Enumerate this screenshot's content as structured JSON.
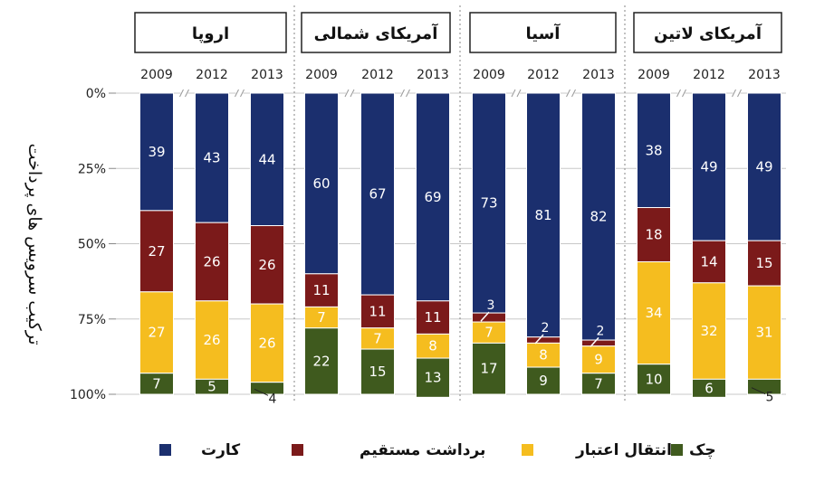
{
  "chart_data": {
    "type": "bar",
    "stacked": true,
    "orientation": "vertical",
    "ylabel": "ترکیب سرویس های پرداخت",
    "ylim": [
      0,
      100
    ],
    "y_axis_inverted": true,
    "y_ticks": [
      "0%",
      "25%",
      "50%",
      "75%",
      "100%"
    ],
    "y_tick_values": [
      0,
      25,
      50,
      75,
      100
    ],
    "grid": true,
    "legend_position": "bottom",
    "legend": [
      {
        "key": "card",
        "label": "کارت",
        "color": "#1b2f6e"
      },
      {
        "key": "direct_debit",
        "label": "برداشت مستقیم",
        "color": "#7b1a1a"
      },
      {
        "key": "credit_transfer",
        "label": "انتقال اعتبار",
        "color": "#f5bd1f"
      },
      {
        "key": "check",
        "label": "چک",
        "color": "#3f5a1e"
      }
    ],
    "groups": [
      {
        "name": "اروپا",
        "bars": [
          {
            "year": "2009",
            "card": 39,
            "direct_debit": 27,
            "credit_transfer": 27,
            "check": 7,
            "labels": {
              "card": "39",
              "direct_debit": "27",
              "credit_transfer": "27",
              "check": "7"
            }
          },
          {
            "year": "2012",
            "card": 43,
            "direct_debit": 26,
            "credit_transfer": 26,
            "check": 5,
            "labels": {
              "card": "43",
              "direct_debit": "26",
              "credit_transfer": "26",
              "check": "5"
            }
          },
          {
            "year": "2013",
            "card": 44,
            "direct_debit": 26,
            "credit_transfer": 26,
            "check": 4,
            "labels": {
              "card": "44",
              "direct_debit": "26",
              "credit_transfer": "26",
              "check": "4"
            },
            "callout": {
              "segment": "check",
              "text": "4"
            }
          }
        ]
      },
      {
        "name": "آمریکای شمالی",
        "bars": [
          {
            "year": "2009",
            "card": 60,
            "direct_debit": 11,
            "credit_transfer": 7,
            "check": 22,
            "labels": {
              "card": "60",
              "direct_debit": "11",
              "credit_transfer": "7",
              "check": "22"
            }
          },
          {
            "year": "2012",
            "card": 67,
            "direct_debit": 11,
            "credit_transfer": 7,
            "check": 15,
            "labels": {
              "card": "67",
              "direct_debit": "11",
              "credit_transfer": "7",
              "check": "15"
            }
          },
          {
            "year": "2013",
            "card": 69,
            "direct_debit": 11,
            "credit_transfer": 8,
            "check": 13,
            "labels": {
              "card": "69",
              "direct_debit": "11",
              "credit_transfer": "8",
              "check": "13"
            }
          }
        ]
      },
      {
        "name": "آسیا",
        "bars": [
          {
            "year": "2009",
            "card": 73,
            "direct_debit": 3,
            "credit_transfer": 7,
            "check": 17,
            "labels": {
              "card": "73",
              "direct_debit": "3",
              "credit_transfer": "7",
              "check": "17"
            },
            "callout": {
              "segment": "direct_debit",
              "text": "3"
            }
          },
          {
            "year": "2012",
            "card": 81,
            "direct_debit": 2,
            "credit_transfer": 8,
            "check": 9,
            "labels": {
              "card": "81",
              "direct_debit": "2",
              "credit_transfer": "8",
              "check": "9"
            },
            "callout": {
              "segment": "direct_debit",
              "text": "2"
            }
          },
          {
            "year": "2013",
            "card": 82,
            "direct_debit": 2,
            "credit_transfer": 9,
            "check": 7,
            "labels": {
              "card": "82",
              "direct_debit": "2",
              "credit_transfer": "9",
              "check": "7"
            },
            "callout": {
              "segment": "direct_debit",
              "text": "2"
            }
          }
        ]
      },
      {
        "name": "آمریکای لاتین",
        "bars": [
          {
            "year": "2009",
            "card": 38,
            "direct_debit": 18,
            "credit_transfer": 34,
            "check": 10,
            "labels": {
              "card": "38",
              "direct_debit": "18",
              "credit_transfer": "34",
              "check": "10"
            }
          },
          {
            "year": "2012",
            "card": 49,
            "direct_debit": 14,
            "credit_transfer": 32,
            "check": 6,
            "labels": {
              "card": "49",
              "direct_debit": "14",
              "credit_transfer": "32",
              "check": "6"
            }
          },
          {
            "year": "2013",
            "card": 49,
            "direct_debit": 15,
            "credit_transfer": 31,
            "check": 5,
            "labels": {
              "card": "49",
              "direct_debit": "15",
              "credit_transfer": "31",
              "check": "5"
            },
            "callout": {
              "segment": "check",
              "text": "5"
            }
          }
        ]
      }
    ]
  }
}
